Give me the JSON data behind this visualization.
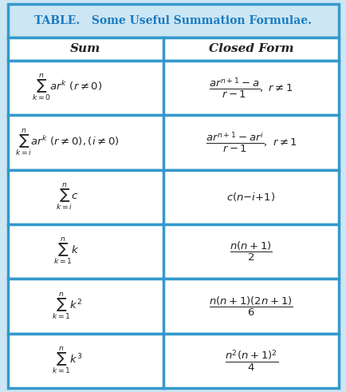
{
  "title": "TABLE.   Some Useful Summation Formulae.",
  "title_color": "#1a7abf",
  "title_bold": true,
  "header_sum": "Sum",
  "header_cf": "Closed Form",
  "header_italic": true,
  "border_color": "#3399cc",
  "bg_color": "#ffffff",
  "header_bg": "#e8f4fb",
  "fig_bg": "#cce6f4",
  "rows": [
    {
      "sum": "$\\sum_{k=0}^{n} ar^k\\ (r\\neq 0)$",
      "cf": "$\\dfrac{ar^{n+1}-a}{r-1},\\ r\\neq 1$"
    },
    {
      "sum": "$\\sum_{k=i}^{n} ar^k\\ (r\\neq 0),(i\\neq 0)$",
      "cf": "$\\dfrac{ar^{n+1}-ar^{i}}{r-1},\\ r\\neq 1$"
    },
    {
      "sum": "$\\sum_{k=i}^{n} c$",
      "cf": "$c(n{-}i{+}1)$"
    },
    {
      "sum": "$\\sum_{k=1}^{n} k$",
      "cf": "$\\dfrac{n(n+1)}{2}$"
    },
    {
      "sum": "$\\sum_{k=1}^{n} k^2$",
      "cf": "$\\dfrac{n(n+1)(2n+1)}{6}$"
    },
    {
      "sum": "$\\sum_{k=1}^{n} k^3$",
      "cf": "$\\dfrac{n^2(n+1)^2}{4}$"
    }
  ]
}
